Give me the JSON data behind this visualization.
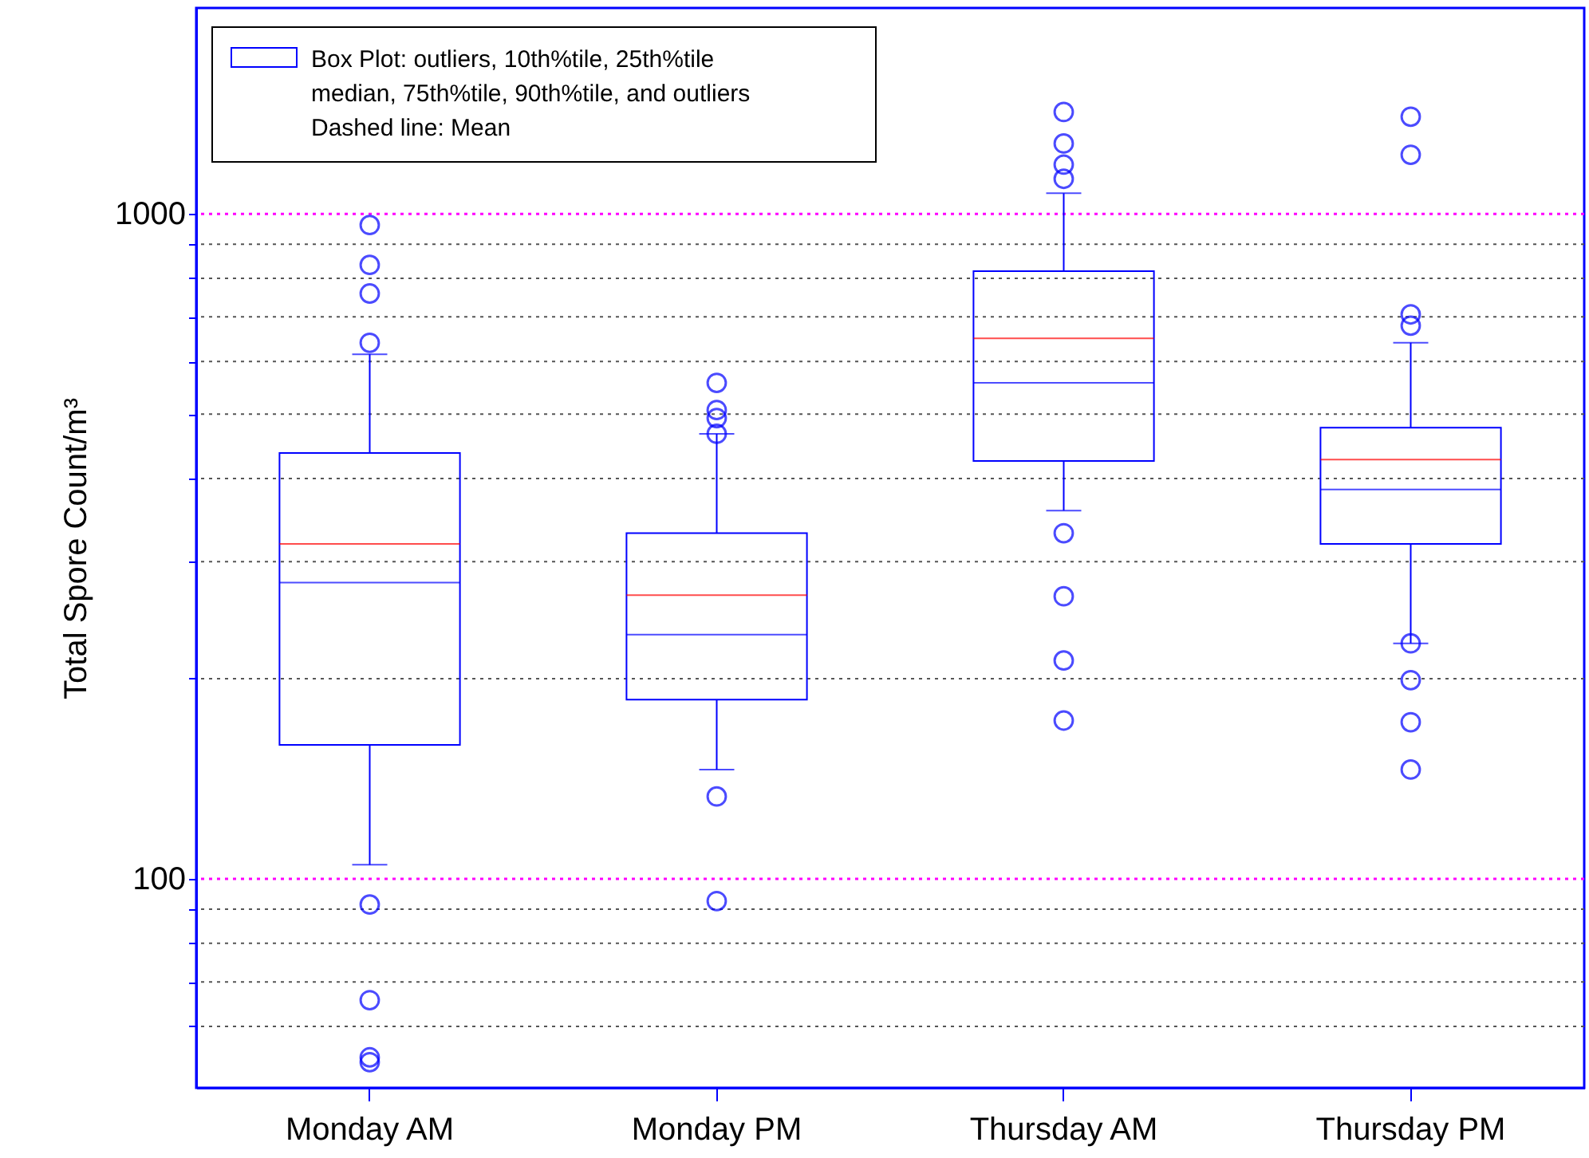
{
  "chart_data": {
    "type": "box",
    "categories": [
      "Monday AM",
      "Monday PM",
      "Thursday AM",
      "Thursday PM"
    ],
    "ylabel": "Total Spore Count/m³",
    "series": [
      {
        "name": "Box Plot: outliers, 10th%tile, 25th%tile median, 75th%tile, 90th%tile, and outliers",
        "color": "#0000ff",
        "boxes": [
          {
            "low": 105,
            "q1": 159,
            "median": 279,
            "q3": 437,
            "high": 615,
            "mean": 319,
            "outliers": [
              962,
              838,
              759,
              640,
              91.5,
              65.7,
              53.9,
              53.0
            ]
          },
          {
            "low": 146,
            "q1": 186,
            "median": 233,
            "q3": 331,
            "high": 467,
            "mean": 267,
            "outliers": [
              557,
              507,
              493,
              467,
              133,
              92.6
            ]
          },
          {
            "low": 358,
            "q1": 425,
            "median": 557,
            "q3": 820,
            "high": 1074,
            "mean": 650,
            "outliers": [
              1423,
              1276,
              1186,
              1129,
              331,
              266,
              213,
              173
            ]
          },
          {
            "low": 226,
            "q1": 319,
            "median": 385,
            "q3": 477,
            "high": 640,
            "mean": 427,
            "outliers": [
              1400,
              1227,
              706,
              679,
              226,
              199,
              172,
              146
            ]
          }
        ]
      }
    ],
    "annotations": [
      "Dashed line: Mean"
    ],
    "log": "y",
    "ylim": [
      48.5,
      2040
    ],
    "yticks": [
      {
        "value": 60,
        "label": null
      },
      {
        "value": 70,
        "label": null
      },
      {
        "value": 80,
        "label": null
      },
      {
        "value": 90,
        "label": null
      },
      100,
      {
        "value": 200,
        "label": null
      },
      {
        "value": 300,
        "label": null
      },
      {
        "value": 400,
        "label": null
      },
      {
        "value": 500,
        "label": null
      },
      {
        "value": 600,
        "label": null
      },
      {
        "value": 700,
        "label": null
      },
      {
        "value": 800,
        "label": null
      },
      {
        "value": 900,
        "label": null
      },
      1000
    ],
    "grid": "y",
    "legend": "top left"
  }
}
